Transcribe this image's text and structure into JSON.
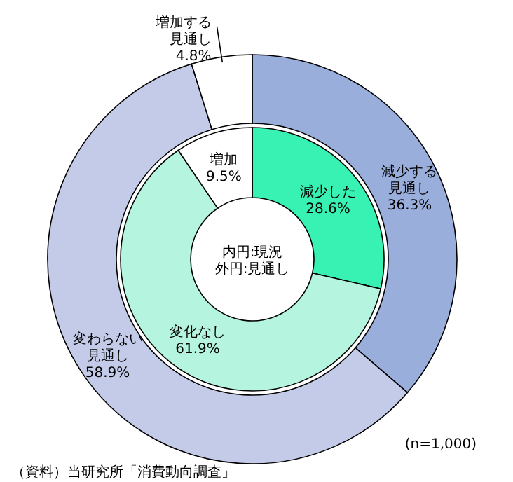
{
  "chart_data": [
    {
      "type": "donut",
      "categories": [
        "減少する見通し",
        "変わらない見通し",
        "増加する見通し"
      ],
      "values": [
        36.3,
        58.9,
        4.8
      ],
      "value_labels": [
        "36.3%",
        "58.9%",
        "4.8%"
      ],
      "colors": [
        "#9aaedc",
        "#c3cbe8",
        "#ffffff"
      ],
      "annotations": [
        "(n=1,000)",
        "（資料）当研究所「消費動向調査」"
      ]
    },
    {
      "type": "donut",
      "categories": [
        "減少した",
        "変化なし",
        "増加"
      ],
      "values": [
        28.6,
        61.9,
        9.5
      ],
      "value_labels": [
        "28.6%",
        "61.9%",
        "9.5%"
      ],
      "colors": [
        "#38f2b4",
        "#b5f5df",
        "#ffffff"
      ],
      "annotations": [
        "内円:現況外円:見通し"
      ]
    }
  ]
}
